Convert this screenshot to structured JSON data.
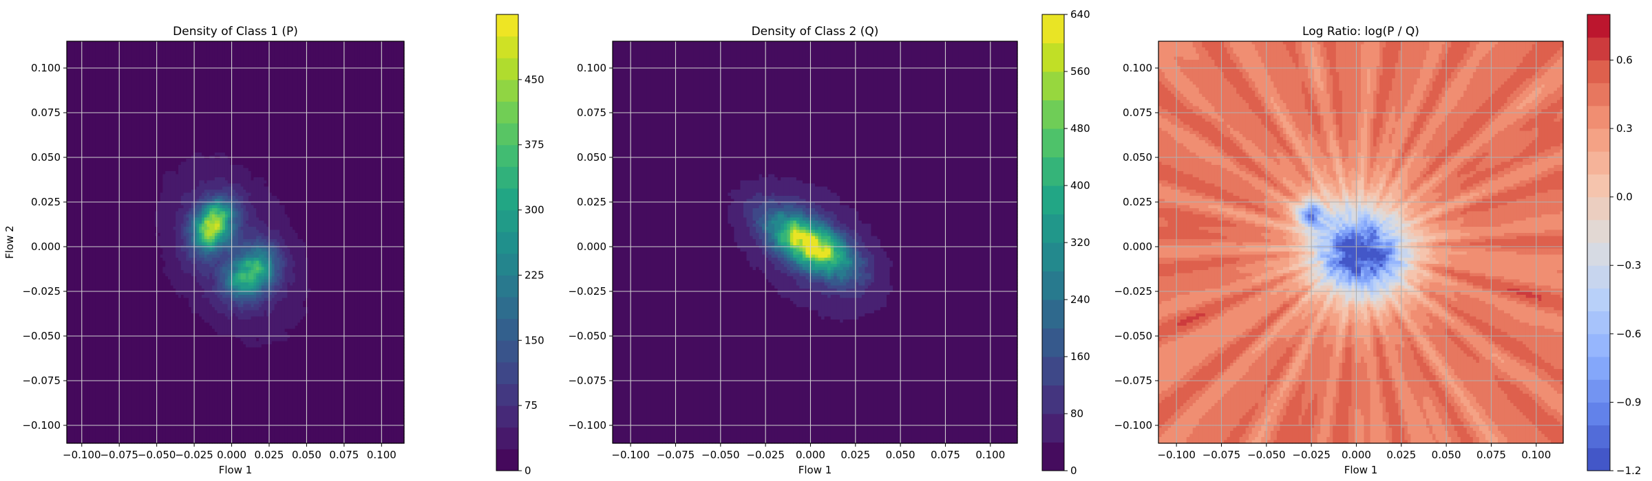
{
  "chart_data": [
    {
      "type": "heatmap",
      "title": "Density of Class 1 (P)",
      "xlabel": "Flow 1",
      "ylabel": "Flow 2",
      "xlim": [
        -0.11,
        0.115
      ],
      "ylim": [
        -0.11,
        0.115
      ],
      "xticks": [
        -0.1,
        -0.075,
        -0.05,
        -0.025,
        0.0,
        0.025,
        0.05,
        0.075,
        0.1
      ],
      "xtick_labels": [
        "−0.100",
        "−0.075",
        "−0.050",
        "−0.025",
        "0.000",
        "0.025",
        "0.050",
        "0.075",
        "0.100"
      ],
      "yticks": [
        -0.1,
        -0.075,
        -0.05,
        -0.025,
        0.0,
        0.025,
        0.05,
        0.075,
        0.1
      ],
      "ytick_labels": [
        "−0.100",
        "−0.075",
        "−0.050",
        "−0.025",
        "0.000",
        "0.025",
        "0.050",
        "0.075",
        "0.100"
      ],
      "grid": true,
      "colormap": "viridis",
      "colorbar": {
        "range": [
          0,
          525
        ],
        "levels": 21,
        "ticks": [
          0,
          75,
          150,
          225,
          300,
          375,
          450
        ],
        "tick_labels": [
          "0",
          "75",
          "150",
          "225",
          "300",
          "375",
          "450"
        ]
      },
      "density_components": [
        {
          "center": [
            -0.013,
            0.012
          ],
          "sigma": [
            0.009,
            0.009
          ],
          "corr": 0.3,
          "peak": 420
        },
        {
          "center": [
            0.013,
            -0.015
          ],
          "sigma": [
            0.011,
            0.009
          ],
          "corr": 0.3,
          "peak": 300
        },
        {
          "center": [
            0.0,
            -0.002
          ],
          "sigma": [
            0.032,
            0.033
          ],
          "corr": -0.35,
          "peak": 90
        }
      ]
    },
    {
      "type": "heatmap",
      "title": "Density of Class 2 (Q)",
      "xlabel": "Flow 1",
      "ylabel": "",
      "xlim": [
        -0.11,
        0.115
      ],
      "ylim": [
        -0.11,
        0.115
      ],
      "xticks": [
        -0.1,
        -0.075,
        -0.05,
        -0.025,
        0.0,
        0.025,
        0.05,
        0.075,
        0.1
      ],
      "xtick_labels": [
        "−0.100",
        "−0.075",
        "−0.050",
        "−0.025",
        "0.000",
        "0.025",
        "0.050",
        "0.075",
        "0.100"
      ],
      "yticks": [
        -0.1,
        -0.075,
        -0.05,
        -0.025,
        0.0,
        0.025,
        0.05,
        0.075,
        0.1
      ],
      "ytick_labels": [
        "−0.100",
        "−0.075",
        "−0.050",
        "−0.025",
        "0.000",
        "0.025",
        "0.050",
        "0.075",
        "0.100"
      ],
      "grid": true,
      "colormap": "viridis",
      "colorbar": {
        "range": [
          0,
          640
        ],
        "levels": 16,
        "ticks": [
          0,
          80,
          160,
          240,
          320,
          400,
          480,
          560,
          640
        ],
        "tick_labels": [
          "0",
          "80",
          "160",
          "240",
          "320",
          "400",
          "480",
          "560",
          "640"
        ]
      },
      "density_components": [
        {
          "center": [
            0.0,
            0.001
          ],
          "sigma": [
            0.015,
            0.011
          ],
          "corr": -0.6,
          "peak": 560
        },
        {
          "center": [
            0.0,
            0.0
          ],
          "sigma": [
            0.03,
            0.028
          ],
          "corr": -0.45,
          "peak": 110
        }
      ]
    },
    {
      "type": "heatmap",
      "title": "Log Ratio: log(P / Q)",
      "xlabel": "Flow 1",
      "ylabel": "",
      "xlim": [
        -0.11,
        0.115
      ],
      "ylim": [
        -0.11,
        0.115
      ],
      "xticks": [
        -0.1,
        -0.075,
        -0.05,
        -0.025,
        0.0,
        0.025,
        0.05,
        0.075,
        0.1
      ],
      "xtick_labels": [
        "−0.100",
        "−0.075",
        "−0.050",
        "−0.025",
        "0.000",
        "0.025",
        "0.050",
        "0.075",
        "0.100"
      ],
      "yticks": [
        -0.1,
        -0.075,
        -0.05,
        -0.025,
        0.0,
        0.025,
        0.05,
        0.075,
        0.1
      ],
      "ytick_labels": [
        "−0.100",
        "−0.075",
        "−0.050",
        "−0.025",
        "0.000",
        "0.025",
        "0.050",
        "0.075",
        "0.100"
      ],
      "grid": true,
      "colormap": "coolwarm",
      "colorbar": {
        "range": [
          -1.2,
          0.8
        ],
        "levels": 20,
        "ticks": [
          -1.2,
          -0.9,
          -0.6,
          -0.3,
          0.0,
          0.3,
          0.6
        ],
        "tick_labels": [
          "−1.2",
          "−0.9",
          "−0.6",
          "−0.3",
          "0.0",
          "0.3",
          "0.6"
        ]
      },
      "background_value": 0.45,
      "low_regions": [
        {
          "center": [
            0.003,
            -0.005
          ],
          "sigma": [
            0.016,
            0.015
          ],
          "depth": 1.35
        },
        {
          "center": [
            -0.025,
            0.018
          ],
          "sigma": [
            0.006,
            0.006
          ],
          "depth": 0.9
        },
        {
          "center": [
            0.0,
            0.0
          ],
          "sigma": [
            0.03,
            0.03
          ],
          "depth": 0.45
        }
      ]
    }
  ]
}
